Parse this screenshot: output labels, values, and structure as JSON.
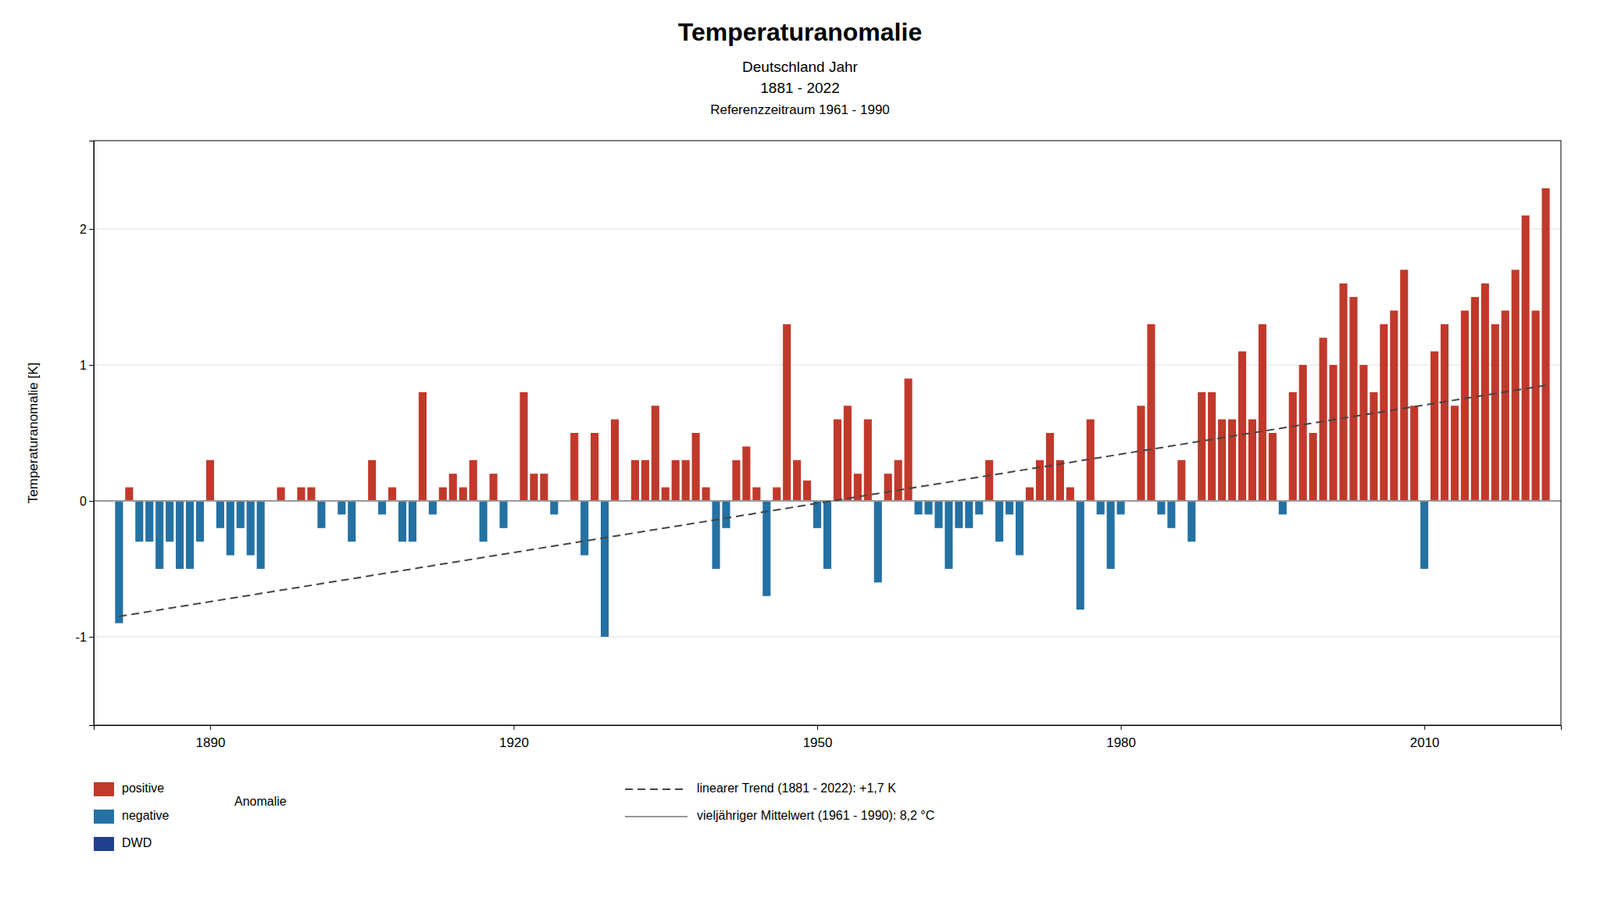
{
  "chart_data": {
    "type": "bar",
    "title": "Temperaturanomalie",
    "subtitle": [
      "Deutschland Jahr",
      "1881 - 2022",
      "Referenzzeitraum 1961 - 1990"
    ],
    "ylabel": "Temperaturanomalie [K]",
    "xlim": [
      1878.5,
      2023.5
    ],
    "xticks": [
      1890,
      1920,
      1950,
      1980,
      2010
    ],
    "ylim": [
      -1.65,
      2.65
    ],
    "yticks": [
      -1.0,
      0.0,
      1.0,
      2.0
    ],
    "grid": true,
    "legend": "bottom",
    "annotations": [
      {
        "text": "positive",
        "color": "#C1392B"
      },
      {
        "text": "negative",
        "color": "#2471A3"
      },
      {
        "text": "DWD",
        "color": "#1F3F8F"
      }
    ],
    "series": [
      {
        "name": "Anomalie",
        "type": "bar",
        "x": [
          1881,
          1882,
          1883,
          1884,
          1885,
          1886,
          1887,
          1888,
          1889,
          1890,
          1891,
          1892,
          1893,
          1894,
          1895,
          1896,
          1897,
          1898,
          1899,
          1900,
          1901,
          1902,
          1903,
          1904,
          1905,
          1906,
          1907,
          1908,
          1909,
          1910,
          1911,
          1912,
          1913,
          1914,
          1915,
          1916,
          1917,
          1918,
          1919,
          1920,
          1921,
          1922,
          1923,
          1924,
          1925,
          1926,
          1927,
          1928,
          1929,
          1930,
          1931,
          1932,
          1933,
          1934,
          1935,
          1936,
          1937,
          1938,
          1939,
          1940,
          1941,
          1942,
          1943,
          1944,
          1945,
          1946,
          1947,
          1948,
          1949,
          1950,
          1951,
          1952,
          1953,
          1954,
          1955,
          1956,
          1957,
          1958,
          1959,
          1960,
          1961,
          1962,
          1963,
          1964,
          1965,
          1966,
          1967,
          1968,
          1969,
          1970,
          1971,
          1972,
          1973,
          1974,
          1975,
          1976,
          1977,
          1978,
          1979,
          1980,
          1981,
          1982,
          1983,
          1984,
          1985,
          1986,
          1987,
          1988,
          1989,
          1990,
          1991,
          1992,
          1993,
          1994,
          1995,
          1996,
          1997,
          1998,
          1999,
          2000,
          2001,
          2002,
          2003,
          2004,
          2005,
          2006,
          2007,
          2008,
          2009,
          2010,
          2011,
          2012,
          2013,
          2014,
          2015,
          2016,
          2017,
          2018,
          2019,
          2020,
          2021,
          2022
        ],
        "values": [
          -0.9,
          0.1,
          -0.3,
          -0.3,
          -0.5,
          -0.3,
          -0.5,
          -0.5,
          -0.3,
          0.3,
          -0.2,
          -0.4,
          -0.2,
          -0.4,
          -0.5,
          0.0,
          0.1,
          0.0,
          0.1,
          0.1,
          -0.2,
          0.0,
          -0.1,
          -0.3,
          0.0,
          0.3,
          -0.1,
          0.1,
          -0.3,
          -0.3,
          0.8,
          -0.1,
          0.1,
          0.2,
          0.1,
          0.3,
          -0.3,
          0.2,
          -0.2,
          0.0,
          0.8,
          0.2,
          0.2,
          -0.1,
          0.0,
          0.5,
          -0.4,
          0.5,
          -1.0,
          0.6,
          0.0,
          0.3,
          0.3,
          0.7,
          0.1,
          0.3,
          0.3,
          0.5,
          0.1,
          -0.5,
          -0.2,
          0.3,
          0.4,
          0.1,
          -0.7,
          0.1,
          1.3,
          0.3,
          0.15,
          -0.2,
          -0.5,
          0.6,
          0.7,
          0.2,
          0.6,
          -0.6,
          0.2,
          0.3,
          0.9,
          -0.1,
          -0.1,
          -0.2,
          -0.5,
          -0.2,
          -0.2,
          -0.1,
          0.3,
          -0.3,
          -0.1,
          -0.4,
          0.1,
          0.3,
          0.5,
          0.3,
          0.1,
          -0.8,
          0.6,
          -0.1,
          -0.5,
          -0.1,
          0.0,
          0.7,
          1.3,
          -0.1,
          -0.2,
          0.3,
          -0.3,
          0.8,
          0.8,
          0.6,
          0.6,
          1.1,
          0.6,
          1.3,
          0.5,
          -0.1,
          0.8,
          1.0,
          0.5,
          1.2,
          1.0,
          1.6,
          1.5,
          1.0,
          0.8,
          1.3,
          1.4,
          1.7,
          0.7,
          -0.5,
          1.1,
          1.3,
          0.7,
          1.4,
          1.5,
          1.6,
          1.3,
          1.4,
          1.7,
          2.1,
          1.4,
          2.3
        ],
        "colors": [
          "#2471A3",
          "#C1392B",
          "#2471A3",
          "#2471A3",
          "#2471A3",
          "#2471A3",
          "#2471A3",
          "#2471A3",
          "#2471A3",
          "#C1392B",
          "#2471A3",
          "#2471A3",
          "#2471A3",
          "#2471A3",
          "#2471A3",
          "#C1392B",
          "#C1392B",
          "#C1392B",
          "#C1392B",
          "#C1392B",
          "#2471A3",
          "#C1392B",
          "#2471A3",
          "#2471A3",
          "#C1392B",
          "#C1392B",
          "#2471A3",
          "#C1392B",
          "#2471A3",
          "#2471A3",
          "#C1392B",
          "#2471A3",
          "#C1392B",
          "#C1392B",
          "#C1392B",
          "#C1392B",
          "#2471A3",
          "#C1392B",
          "#2471A3",
          "#C1392B",
          "#C1392B",
          "#C1392B",
          "#C1392B",
          "#2471A3",
          "#C1392B",
          "#C1392B",
          "#2471A3",
          "#C1392B",
          "#2471A3",
          "#C1392B",
          "#C1392B",
          "#C1392B",
          "#C1392B",
          "#C1392B",
          "#C1392B",
          "#C1392B",
          "#C1392B",
          "#C1392B",
          "#C1392B",
          "#2471A3",
          "#2471A3",
          "#C1392B",
          "#C1392B",
          "#C1392B",
          "#2471A3",
          "#C1392B",
          "#C1392B",
          "#C1392B",
          "#C1392B",
          "#2471A3",
          "#2471A3",
          "#C1392B",
          "#C1392B",
          "#C1392B",
          "#C1392B",
          "#2471A3",
          "#C1392B",
          "#C1392B",
          "#C1392B",
          "#2471A3",
          "#2471A3",
          "#2471A3",
          "#2471A3",
          "#2471A3",
          "#2471A3",
          "#2471A3",
          "#C1392B",
          "#2471A3",
          "#2471A3",
          "#2471A3",
          "#C1392B",
          "#C1392B",
          "#C1392B",
          "#C1392B",
          "#C1392B",
          "#2471A3",
          "#C1392B",
          "#2471A3",
          "#2471A3",
          "#2471A3",
          "#C1392B",
          "#C1392B",
          "#C1392B",
          "#2471A3",
          "#2471A3",
          "#C1392B",
          "#2471A3",
          "#C1392B",
          "#C1392B",
          "#C1392B",
          "#C1392B",
          "#C1392B",
          "#C1392B",
          "#C1392B",
          "#C1392B",
          "#2471A3",
          "#C1392B",
          "#C1392B",
          "#C1392B",
          "#C1392B",
          "#C1392B",
          "#C1392B",
          "#C1392B",
          "#C1392B",
          "#C1392B",
          "#C1392B",
          "#C1392B",
          "#C1392B",
          "#C1392B",
          "#2471A3",
          "#C1392B",
          "#C1392B",
          "#C1392B",
          "#C1392B",
          "#C1392B",
          "#C1392B",
          "#C1392B",
          "#C1392B",
          "#C1392B",
          "#C1392B",
          "#C1392B",
          "#C1392B"
        ]
      },
      {
        "name": "linearer Trend (1881 - 2022): +1,7 K",
        "type": "line",
        "x": [
          1881,
          2022
        ],
        "values": [
          -0.85,
          0.85
        ],
        "color": "#444444",
        "line_style": "dashed"
      },
      {
        "name": "vieljähriger Mittelwert (1961 - 1990): 8,2 °C",
        "type": "line",
        "x": [
          1878.5,
          2023.5
        ],
        "values": [
          0.0,
          0.0
        ],
        "color": "#999999",
        "line_style": "solid"
      }
    ]
  }
}
